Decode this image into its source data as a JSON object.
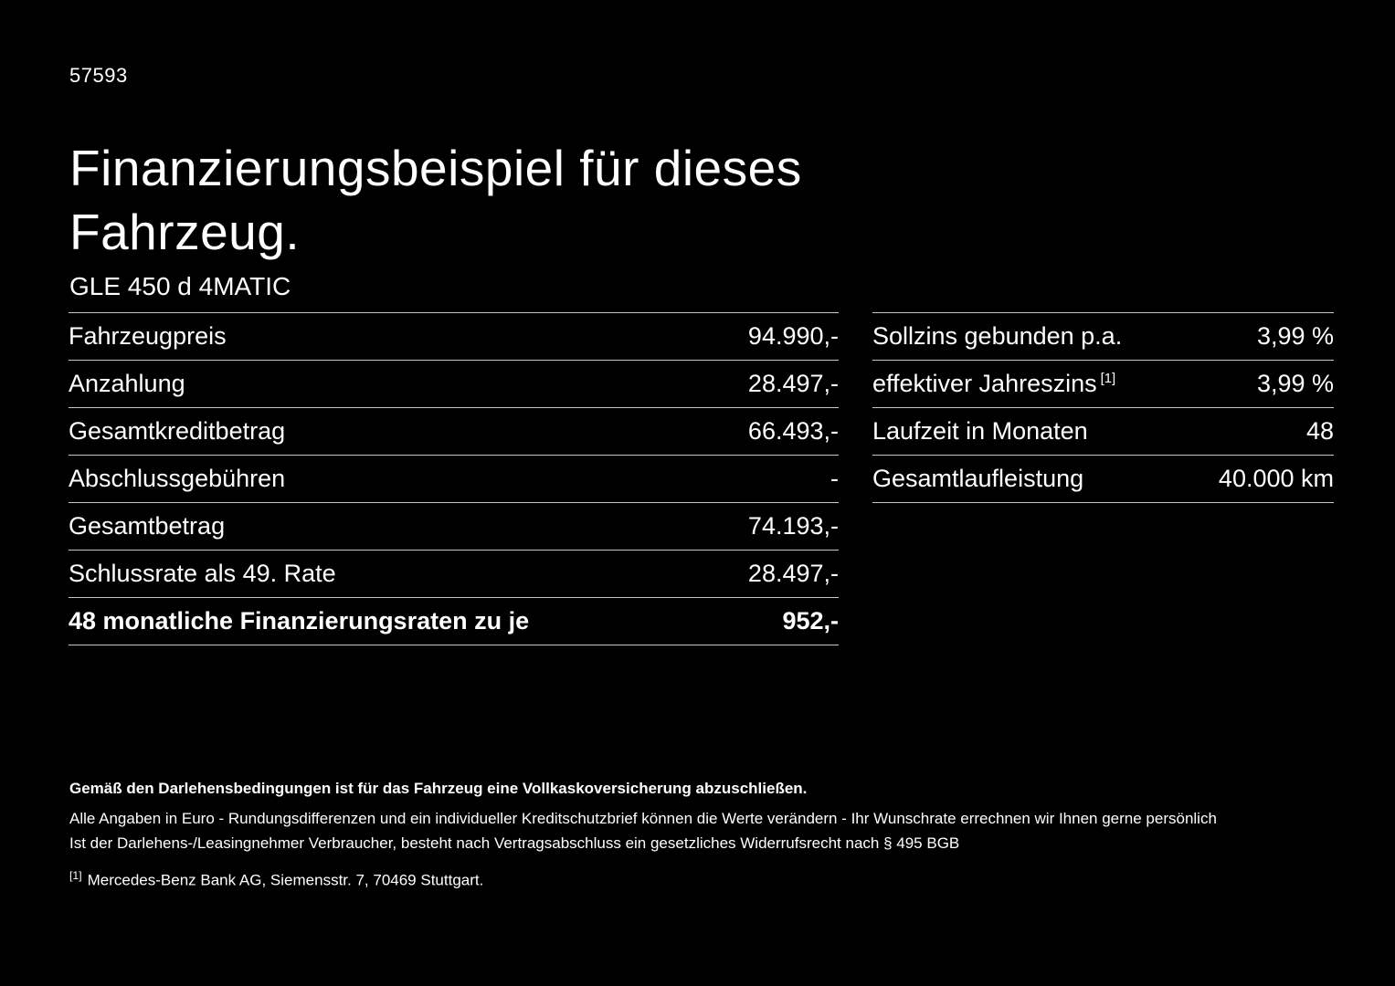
{
  "page": {
    "doc_number": "57593",
    "title_line1": "Finanzierungsbeispiel für dieses",
    "title_line2": "Fahrzeug.",
    "vehicle": "GLE 450 d 4MATIC",
    "colors": {
      "background": "#000000",
      "text": "#ffffff",
      "divider": "#c8c8c8"
    }
  },
  "left_table": {
    "rows": [
      {
        "label": "Fahrzeugpreis",
        "value": "94.990,-"
      },
      {
        "label": "Anzahlung",
        "value": "28.497,-"
      },
      {
        "label": "Gesamtkreditbetrag",
        "value": "66.493,-"
      },
      {
        "label": "Abschlussgebühren",
        "value": "-"
      },
      {
        "label": "Gesamtbetrag",
        "value": "74.193,-"
      },
      {
        "label": "Schlussrate als 49. Rate",
        "value": "28.497,-"
      },
      {
        "label": "48 monatliche Finanzierungsraten zu je",
        "value": "952,-"
      }
    ]
  },
  "right_table": {
    "rows": [
      {
        "label": "Sollzins gebunden p.a.",
        "sup": "",
        "value": "3,99 %"
      },
      {
        "label": "effektiver Jahreszins",
        "sup": "[1]",
        "value": "3,99 %"
      },
      {
        "label": "Laufzeit in Monaten",
        "sup": "",
        "value": "48"
      },
      {
        "label": "Gesamtlaufleistung",
        "sup": "",
        "value": "40.000 km"
      }
    ]
  },
  "footnotes": {
    "bold_line": "Gemäß den Darlehensbedingungen ist für das Fahrzeug eine Vollkaskoversicherung abzuschließen.",
    "line2": "Alle Angaben in Euro - Rundungsdifferenzen und ein individueller Kreditschutzbrief können die Werte verändern - Ihr Wunschrate errechnen wir Ihnen gerne persönlich",
    "line3": "Ist der Darlehens-/Leasingnehmer Verbraucher, besteht nach Vertragsabschluss ein gesetzliches Widerrufsrecht nach § 495 BGB",
    "source_marker": "[1]",
    "source_text": "Mercedes-Benz Bank AG, Siemensstr. 7, 70469 Stuttgart."
  }
}
